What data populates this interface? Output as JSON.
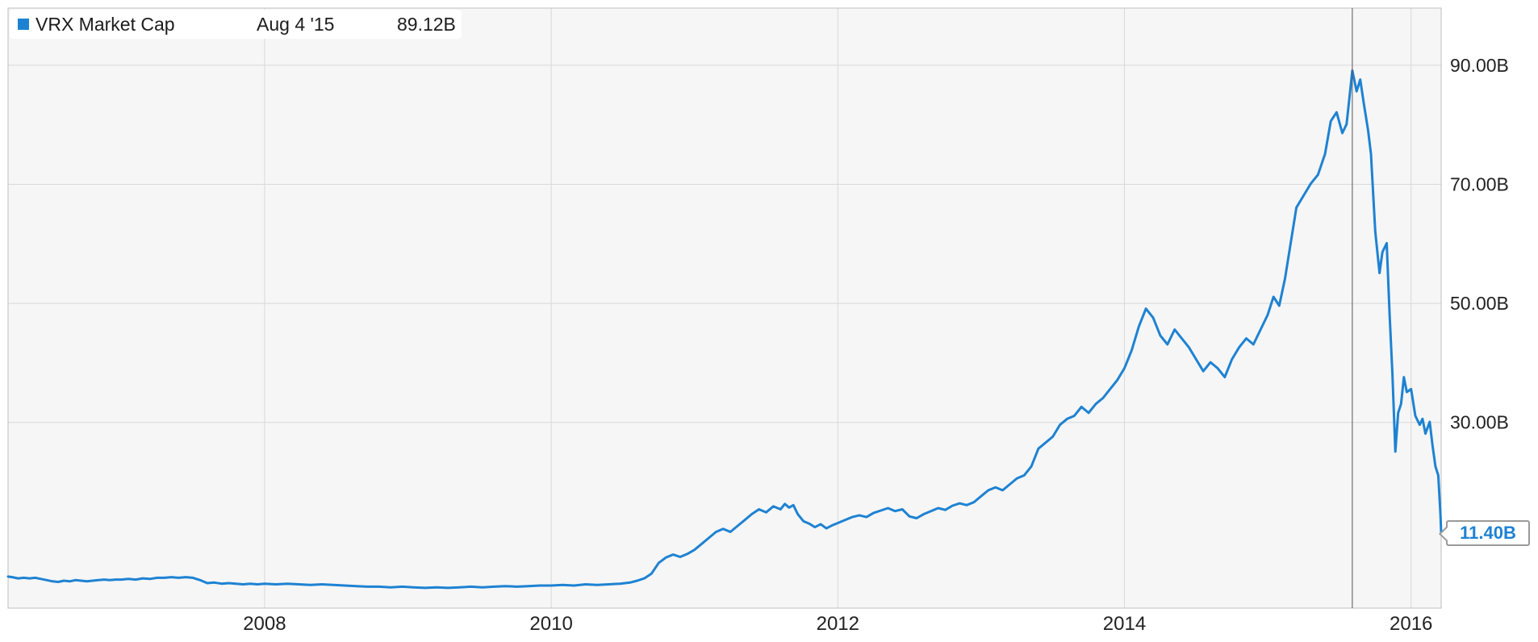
{
  "legend": {
    "series_label": "VRX Market Cap",
    "hover_date": "Aug 4 '15",
    "hover_value": "89.12B"
  },
  "colors": {
    "line": "#1e82d2",
    "plot_bg": "#f6f6f6",
    "grid": "#d8d8d8",
    "border": "#bfbfbf",
    "crosshair": "#555555",
    "axis_text": "#222222",
    "flag_text": "#1e82d2"
  },
  "chart_data": {
    "type": "line",
    "title": "VRX Market Cap",
    "legend_position": "top-left",
    "grid": true,
    "xlim": [
      2006.21,
      2016.21
    ],
    "ylim": [
      -1.2,
      99.6
    ],
    "x_ticks": [
      {
        "value": 2008,
        "label": "2008"
      },
      {
        "value": 2010,
        "label": "2010"
      },
      {
        "value": 2012,
        "label": "2012"
      },
      {
        "value": 2014,
        "label": "2014"
      },
      {
        "value": 2016,
        "label": "2016"
      }
    ],
    "y_ticks": [
      {
        "value": 90,
        "label": "90.00B"
      },
      {
        "value": 70,
        "label": "70.00B"
      },
      {
        "value": 50,
        "label": "50.00B"
      },
      {
        "value": 30,
        "label": "30.00B"
      }
    ],
    "crosshair": {
      "x": 2015.59,
      "date": "Aug 4 '15",
      "value": "89.12B"
    },
    "last_point_label": "11.40B",
    "series": [
      {
        "name": "VRX Market Cap",
        "points": [
          [
            2006.21,
            4.1
          ],
          [
            2006.24,
            4.0
          ],
          [
            2006.28,
            3.8
          ],
          [
            2006.32,
            3.9
          ],
          [
            2006.36,
            3.8
          ],
          [
            2006.4,
            3.9
          ],
          [
            2006.44,
            3.7
          ],
          [
            2006.48,
            3.5
          ],
          [
            2006.52,
            3.3
          ],
          [
            2006.56,
            3.2
          ],
          [
            2006.6,
            3.4
          ],
          [
            2006.64,
            3.3
          ],
          [
            2006.68,
            3.5
          ],
          [
            2006.72,
            3.4
          ],
          [
            2006.76,
            3.3
          ],
          [
            2006.8,
            3.4
          ],
          [
            2006.84,
            3.5
          ],
          [
            2006.88,
            3.6
          ],
          [
            2006.92,
            3.5
          ],
          [
            2006.96,
            3.6
          ],
          [
            2007.0,
            3.6
          ],
          [
            2007.05,
            3.7
          ],
          [
            2007.1,
            3.6
          ],
          [
            2007.15,
            3.8
          ],
          [
            2007.2,
            3.7
          ],
          [
            2007.25,
            3.9
          ],
          [
            2007.3,
            3.9
          ],
          [
            2007.35,
            4.0
          ],
          [
            2007.4,
            3.9
          ],
          [
            2007.45,
            4.0
          ],
          [
            2007.5,
            3.9
          ],
          [
            2007.55,
            3.5
          ],
          [
            2007.6,
            3.0
          ],
          [
            2007.65,
            3.1
          ],
          [
            2007.7,
            2.9
          ],
          [
            2007.75,
            3.0
          ],
          [
            2007.8,
            2.9
          ],
          [
            2007.85,
            2.8
          ],
          [
            2007.9,
            2.9
          ],
          [
            2007.95,
            2.8
          ],
          [
            2008.0,
            2.9
          ],
          [
            2008.08,
            2.8
          ],
          [
            2008.16,
            2.9
          ],
          [
            2008.24,
            2.8
          ],
          [
            2008.32,
            2.7
          ],
          [
            2008.4,
            2.8
          ],
          [
            2008.48,
            2.7
          ],
          [
            2008.56,
            2.6
          ],
          [
            2008.64,
            2.5
          ],
          [
            2008.72,
            2.4
          ],
          [
            2008.8,
            2.4
          ],
          [
            2008.88,
            2.3
          ],
          [
            2008.96,
            2.4
          ],
          [
            2009.04,
            2.3
          ],
          [
            2009.12,
            2.2
          ],
          [
            2009.2,
            2.3
          ],
          [
            2009.28,
            2.2
          ],
          [
            2009.36,
            2.3
          ],
          [
            2009.44,
            2.4
          ],
          [
            2009.52,
            2.3
          ],
          [
            2009.6,
            2.4
          ],
          [
            2009.68,
            2.5
          ],
          [
            2009.76,
            2.4
          ],
          [
            2009.84,
            2.5
          ],
          [
            2009.92,
            2.6
          ],
          [
            2010.0,
            2.6
          ],
          [
            2010.08,
            2.7
          ],
          [
            2010.16,
            2.6
          ],
          [
            2010.24,
            2.8
          ],
          [
            2010.32,
            2.7
          ],
          [
            2010.4,
            2.8
          ],
          [
            2010.48,
            2.9
          ],
          [
            2010.55,
            3.1
          ],
          [
            2010.6,
            3.4
          ],
          [
            2010.65,
            3.8
          ],
          [
            2010.7,
            4.6
          ],
          [
            2010.75,
            6.4
          ],
          [
            2010.8,
            7.3
          ],
          [
            2010.85,
            7.8
          ],
          [
            2010.9,
            7.4
          ],
          [
            2010.95,
            7.9
          ],
          [
            2011.0,
            8.6
          ],
          [
            2011.05,
            9.6
          ],
          [
            2011.1,
            10.6
          ],
          [
            2011.15,
            11.6
          ],
          [
            2011.2,
            12.1
          ],
          [
            2011.25,
            11.6
          ],
          [
            2011.3,
            12.6
          ],
          [
            2011.35,
            13.6
          ],
          [
            2011.4,
            14.6
          ],
          [
            2011.45,
            15.4
          ],
          [
            2011.5,
            14.9
          ],
          [
            2011.55,
            15.9
          ],
          [
            2011.6,
            15.4
          ],
          [
            2011.63,
            16.3
          ],
          [
            2011.66,
            15.7
          ],
          [
            2011.69,
            16.1
          ],
          [
            2011.72,
            14.6
          ],
          [
            2011.76,
            13.4
          ],
          [
            2011.8,
            13.0
          ],
          [
            2011.84,
            12.4
          ],
          [
            2011.88,
            12.9
          ],
          [
            2011.92,
            12.2
          ],
          [
            2011.96,
            12.7
          ],
          [
            2012.0,
            13.1
          ],
          [
            2012.05,
            13.6
          ],
          [
            2012.1,
            14.1
          ],
          [
            2012.15,
            14.4
          ],
          [
            2012.2,
            14.1
          ],
          [
            2012.25,
            14.8
          ],
          [
            2012.3,
            15.2
          ],
          [
            2012.35,
            15.6
          ],
          [
            2012.4,
            15.1
          ],
          [
            2012.45,
            15.4
          ],
          [
            2012.5,
            14.2
          ],
          [
            2012.55,
            13.9
          ],
          [
            2012.6,
            14.6
          ],
          [
            2012.65,
            15.1
          ],
          [
            2012.7,
            15.6
          ],
          [
            2012.75,
            15.3
          ],
          [
            2012.8,
            16.0
          ],
          [
            2012.85,
            16.4
          ],
          [
            2012.9,
            16.1
          ],
          [
            2012.95,
            16.6
          ],
          [
            2013.0,
            17.6
          ],
          [
            2013.05,
            18.6
          ],
          [
            2013.1,
            19.1
          ],
          [
            2013.15,
            18.6
          ],
          [
            2013.2,
            19.6
          ],
          [
            2013.25,
            20.6
          ],
          [
            2013.3,
            21.1
          ],
          [
            2013.35,
            22.6
          ],
          [
            2013.4,
            25.6
          ],
          [
            2013.45,
            26.6
          ],
          [
            2013.5,
            27.6
          ],
          [
            2013.55,
            29.6
          ],
          [
            2013.6,
            30.6
          ],
          [
            2013.65,
            31.1
          ],
          [
            2013.7,
            32.6
          ],
          [
            2013.75,
            31.6
          ],
          [
            2013.8,
            33.1
          ],
          [
            2013.85,
            34.1
          ],
          [
            2013.9,
            35.6
          ],
          [
            2013.95,
            37.1
          ],
          [
            2014.0,
            39.1
          ],
          [
            2014.05,
            42.1
          ],
          [
            2014.1,
            46.1
          ],
          [
            2014.15,
            49.1
          ],
          [
            2014.2,
            47.6
          ],
          [
            2014.25,
            44.6
          ],
          [
            2014.3,
            43.1
          ],
          [
            2014.35,
            45.6
          ],
          [
            2014.4,
            44.1
          ],
          [
            2014.45,
            42.6
          ],
          [
            2014.5,
            40.6
          ],
          [
            2014.55,
            38.6
          ],
          [
            2014.6,
            40.1
          ],
          [
            2014.65,
            39.1
          ],
          [
            2014.7,
            37.6
          ],
          [
            2014.75,
            40.6
          ],
          [
            2014.8,
            42.6
          ],
          [
            2014.85,
            44.1
          ],
          [
            2014.9,
            43.1
          ],
          [
            2014.95,
            45.6
          ],
          [
            2015.0,
            48.1
          ],
          [
            2015.04,
            51.1
          ],
          [
            2015.08,
            49.6
          ],
          [
            2015.12,
            54.1
          ],
          [
            2015.16,
            60.1
          ],
          [
            2015.2,
            66.1
          ],
          [
            2015.25,
            68.1
          ],
          [
            2015.3,
            70.1
          ],
          [
            2015.35,
            71.6
          ],
          [
            2015.4,
            75.1
          ],
          [
            2015.44,
            80.6
          ],
          [
            2015.48,
            82.1
          ],
          [
            2015.52,
            78.6
          ],
          [
            2015.55,
            80.1
          ],
          [
            2015.59,
            89.1
          ],
          [
            2015.62,
            85.6
          ],
          [
            2015.645,
            87.6
          ],
          [
            2015.67,
            83.6
          ],
          [
            2015.7,
            79.1
          ],
          [
            2015.72,
            75.1
          ],
          [
            2015.75,
            62.1
          ],
          [
            2015.78,
            55.1
          ],
          [
            2015.8,
            58.6
          ],
          [
            2015.83,
            60.1
          ],
          [
            2015.85,
            48.1
          ],
          [
            2015.87,
            38.1
          ],
          [
            2015.89,
            25.1
          ],
          [
            2015.91,
            31.6
          ],
          [
            2015.93,
            33.1
          ],
          [
            2015.95,
            37.6
          ],
          [
            2015.97,
            35.1
          ],
          [
            2016.0,
            35.6
          ],
          [
            2016.03,
            31.1
          ],
          [
            2016.06,
            29.6
          ],
          [
            2016.08,
            30.6
          ],
          [
            2016.1,
            28.1
          ],
          [
            2016.13,
            30.1
          ],
          [
            2016.15,
            26.1
          ],
          [
            2016.17,
            22.6
          ],
          [
            2016.19,
            21.1
          ],
          [
            2016.205,
            14.6
          ],
          [
            2016.21,
            11.4
          ]
        ]
      }
    ]
  }
}
